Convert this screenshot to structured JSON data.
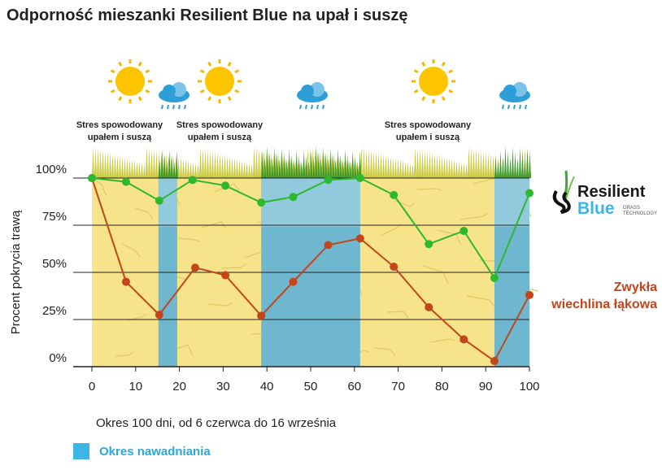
{
  "title": "Odporność mieszanki Resilient Blue na upał i suszę",
  "x_caption": "Okres 100 dni, od 6 czerwca do 16 września",
  "legend_irrigation": "Okres nawadniania",
  "stress_label_line1": "Stres spowodowany",
  "stress_label_line2": "upałem i suszą",
  "red_label_line1": "Zwykła",
  "red_label_line2": "wiechlina łąkowa",
  "logo": {
    "line1": "Resilient",
    "line2": "Blue",
    "tag1": "GRASS",
    "tag2": "TECHNOLOGY"
  },
  "colors": {
    "green": "#2eb82e",
    "red": "#c2451c",
    "drought": "#f7e38a",
    "irrigation": "#6fb6cf",
    "legend": "#3cb6e6"
  },
  "chart_data": {
    "type": "line",
    "title": "Odporność mieszanki Resilient Blue na upał i suszę",
    "xlabel": "Okres 100 dni, od 6 czerwca do 16 września",
    "ylabel": "Procent pokrycia trawą",
    "xlim": [
      0,
      100
    ],
    "ylim": [
      0,
      100
    ],
    "xticks": [
      0,
      10,
      20,
      30,
      40,
      50,
      60,
      70,
      80,
      90,
      100
    ],
    "yticks": [
      {
        "v": 0,
        "l": "0%"
      },
      {
        "v": 25,
        "l": "25%"
      },
      {
        "v": 50,
        "l": "50%"
      },
      {
        "v": 75,
        "l": "75%"
      },
      {
        "v": 100,
        "l": "100%"
      }
    ],
    "irrigation_periods": [
      [
        15.2,
        19.5
      ],
      [
        38.7,
        61.3
      ],
      [
        92,
        100
      ]
    ],
    "series": [
      {
        "name": "Resilient Blue",
        "color": "#2eb82e",
        "x": [
          0,
          7.8,
          15.4,
          23,
          30.5,
          38.7,
          46,
          54,
          61.3,
          69,
          77,
          85,
          92,
          100
        ],
        "y": [
          100,
          98,
          88,
          99,
          96,
          87,
          90,
          99,
          100,
          91,
          65,
          72,
          47,
          92
        ]
      },
      {
        "name": "Zwykła wiechlina łąkowa",
        "color": "#c2451c",
        "x": [
          0,
          7.8,
          15.4,
          23.6,
          30.5,
          38.7,
          46,
          54,
          61.3,
          69,
          77,
          85,
          92,
          100
        ],
        "y": [
          100,
          45,
          27.5,
          52.5,
          48.5,
          27,
          45,
          64.5,
          68,
          53,
          31.5,
          14.5,
          3,
          38
        ]
      }
    ]
  }
}
